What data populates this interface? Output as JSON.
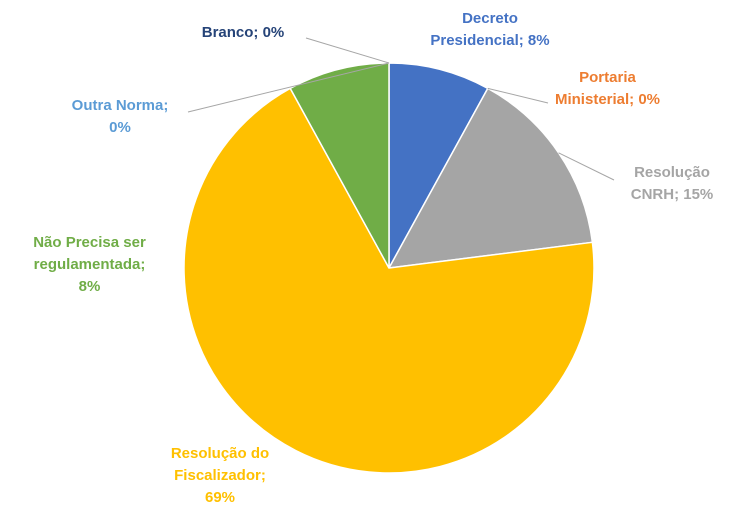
{
  "chart_data": {
    "type": "pie",
    "title": "",
    "slices": [
      {
        "name": "Decreto Presidencial",
        "value": 8,
        "label_lines": [
          "Decreto",
          "Presidencial; 8%"
        ],
        "color": "#4472C4"
      },
      {
        "name": "Portaria Ministerial",
        "value": 0,
        "label_lines": [
          "Portaria",
          "Ministerial; 0%"
        ],
        "color": "#ED7D31"
      },
      {
        "name": "Resolução CNRH",
        "value": 15,
        "label_lines": [
          "Resolução",
          "CNRH; 15%"
        ],
        "color": "#A5A5A5"
      },
      {
        "name": "Resolução do Fiscalizador",
        "value": 69,
        "label_lines": [
          "Resolução do",
          "Fiscalizador;",
          "69%"
        ],
        "color": "#FFC000"
      },
      {
        "name": "Não Precisa ser regulamentada",
        "value": 8,
        "label_lines": [
          "Não Precisa ser",
          "regulamentada;",
          "8%"
        ],
        "color": "#70AD47"
      },
      {
        "name": "Outra Norma",
        "value": 0,
        "label_lines": [
          "Outra Norma;",
          "0%"
        ],
        "color": "#5B9BD5"
      },
      {
        "name": "Branco",
        "value": 0,
        "label_lines": [
          "Branco; 0%"
        ],
        "color": "#264478"
      }
    ],
    "legend": "none",
    "start_angle_deg": 0,
    "direction": "clockwise"
  }
}
